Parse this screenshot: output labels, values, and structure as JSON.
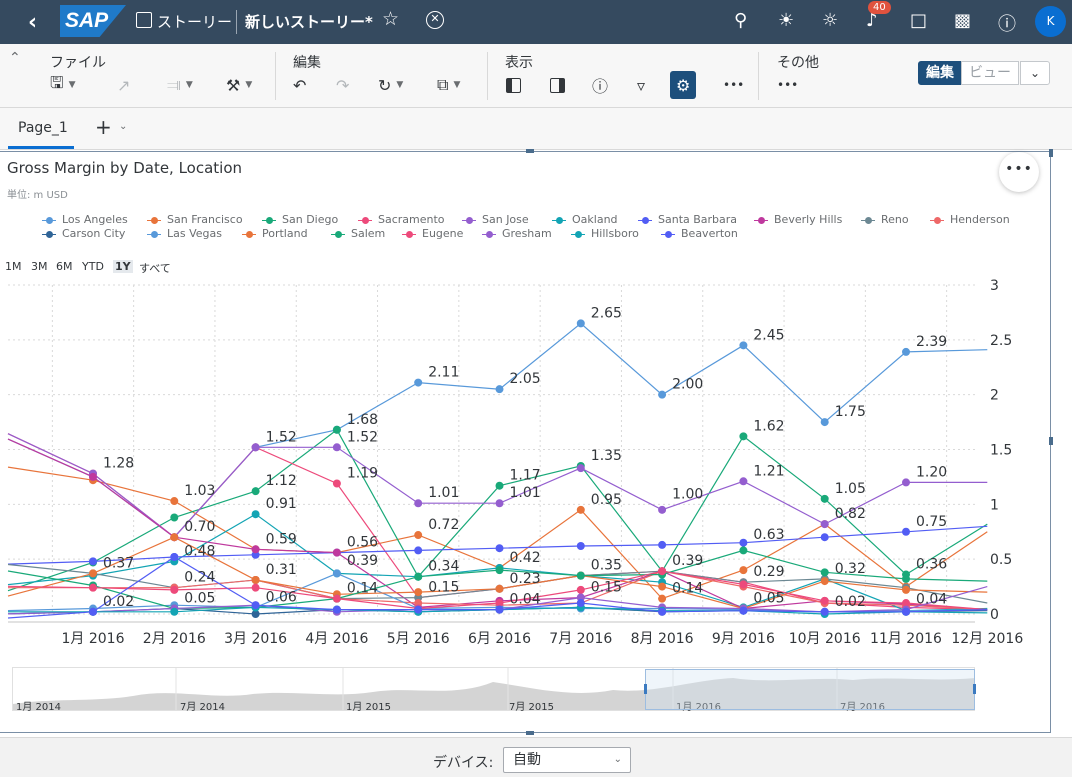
{
  "shell": {
    "logo_text": "SAP",
    "crumb": "ストーリー",
    "title": "新しいストーリー*",
    "notification_count": "40",
    "avatar_initial": "K"
  },
  "toolbar": {
    "file_label": "ファイル",
    "edit_label": "編集",
    "view_label": "表示",
    "other_label": "その他",
    "more_glyph": "•••",
    "mode_edit": "編集",
    "mode_view": "ビュー"
  },
  "tabs": {
    "page_label": "Page_1"
  },
  "chart": {
    "title": "Gross Margin by Date, Location",
    "unit": "単位: m USD",
    "more_glyph": "•••",
    "range_buttons": [
      "1M",
      "3M",
      "6M",
      "YTD",
      "1Y",
      "すべて"
    ],
    "range_selected": "1Y",
    "navigator_labels": [
      "1月 2014",
      "7月 2014",
      "1月 2015",
      "7月 2015",
      "1月 2016",
      "7月 2016"
    ],
    "highlight_color": "#5899da"
  },
  "footer": {
    "device_label": "デバイス:",
    "device_value": "自動"
  },
  "chart_data": {
    "type": "line",
    "title": "Gross Margin by Date, Location",
    "subtitle": "単位: m USD",
    "x": [
      "1月 2016",
      "2月 2016",
      "3月 2016",
      "4月 2016",
      "5月 2016",
      "6月 2016",
      "7月 2016",
      "8月 2016",
      "9月 2016",
      "10月 2016",
      "11月 2016",
      "12月 2016"
    ],
    "ylim": [
      0,
      3
    ],
    "yticks": [
      "0",
      "0.5",
      "1",
      "1.5",
      "2",
      "2.5",
      "3"
    ],
    "y_axis_side": "right",
    "grid": true,
    "legend_position": "top",
    "series": [
      {
        "name": "Los Angeles",
        "color": "#5899da",
        "values": [
          1.25,
          0.7,
          1.52,
          1.68,
          2.11,
          2.05,
          2.65,
          2.0,
          2.45,
          1.75,
          2.39,
          2.41
        ]
      },
      {
        "name": "San Francisco",
        "color": "#e8743b",
        "values": [
          1.22,
          1.03,
          0.59,
          0.56,
          0.72,
          0.42,
          0.95,
          0.14,
          0.4,
          0.82,
          0.25,
          0.75
        ]
      },
      {
        "name": "San Diego",
        "color": "#19a979",
        "values": [
          0.47,
          0.88,
          1.12,
          1.68,
          0.34,
          1.17,
          1.35,
          0.39,
          1.62,
          1.05,
          0.36,
          0.82
        ]
      },
      {
        "name": "Sacramento",
        "color": "#ed4a7b",
        "values": [
          1.28,
          0.7,
          1.52,
          1.19,
          0.15,
          0.23,
          0.35,
          0.39,
          0.29,
          0.1,
          0.06,
          0.04
        ]
      },
      {
        "name": "San Jose",
        "color": "#945ecf",
        "values": [
          1.28,
          0.7,
          1.52,
          1.52,
          1.01,
          1.01,
          1.33,
          0.95,
          1.21,
          0.82,
          1.2,
          1.2
        ]
      },
      {
        "name": "Oakland",
        "color": "#13a4b4",
        "values": [
          0.35,
          0.48,
          0.91,
          0.37,
          0.34,
          0.42,
          0.35,
          0.29,
          0.06,
          0.32,
          0.03,
          0.05
        ]
      },
      {
        "name": "Santa Barbara",
        "color": "#525df4",
        "values": [
          0.48,
          0.52,
          0.54,
          0.56,
          0.58,
          0.6,
          0.62,
          0.63,
          0.65,
          0.7,
          0.75,
          0.8
        ]
      },
      {
        "name": "Beverly Hills",
        "color": "#bf399e",
        "values": [
          1.25,
          0.7,
          0.59,
          0.56,
          0.06,
          0.12,
          0.15,
          0.39,
          0.05,
          0.12,
          0.09,
          0.04
        ]
      },
      {
        "name": "Reno",
        "color": "#6c8893",
        "values": [
          0.37,
          0.24,
          0.31,
          0.14,
          0.15,
          0.23,
          0.35,
          0.39,
          0.29,
          0.32,
          0.24,
          0.1
        ]
      },
      {
        "name": "Henderson",
        "color": "#ee6868",
        "values": [
          0.24,
          0.24,
          0.31,
          0.14,
          0.1,
          0.08,
          0.1,
          0.39,
          0.25,
          0.1,
          0.08,
          0.04
        ]
      },
      {
        "name": "Carson City",
        "color": "#2f6497",
        "values": [
          0.02,
          0.05,
          0.0,
          0.04,
          0.02,
          0.04,
          0.06,
          0.02,
          0.03,
          0.02,
          0.02,
          0.03
        ]
      },
      {
        "name": "Las Vegas",
        "color": "#5899da",
        "values": [
          0.05,
          0.08,
          0.06,
          0.37,
          0.05,
          0.06,
          0.05,
          0.05,
          0.04,
          0.02,
          0.03,
          0.04
        ]
      },
      {
        "name": "Portland",
        "color": "#e8743b",
        "values": [
          0.37,
          0.7,
          0.31,
          0.18,
          0.2,
          0.23,
          0.35,
          0.25,
          0.05,
          0.3,
          0.22,
          0.2
        ]
      },
      {
        "name": "Salem",
        "color": "#19a979",
        "values": [
          0.26,
          0.05,
          0.06,
          0.14,
          0.34,
          0.4,
          0.35,
          0.36,
          0.58,
          0.38,
          0.32,
          0.3
        ]
      },
      {
        "name": "Eugene",
        "color": "#ed4a7b",
        "values": [
          0.24,
          0.22,
          0.24,
          0.14,
          0.05,
          0.1,
          0.22,
          0.39,
          0.27,
          0.12,
          0.1,
          0.04
        ]
      },
      {
        "name": "Gresham",
        "color": "#945ecf",
        "values": [
          0.02,
          0.05,
          0.08,
          0.02,
          0.04,
          0.04,
          0.15,
          0.06,
          0.05,
          0.02,
          0.04,
          0.25
        ]
      },
      {
        "name": "Hillsboro",
        "color": "#13a4b4",
        "values": [
          0.02,
          0.02,
          0.06,
          0.04,
          0.02,
          0.04,
          0.06,
          0.03,
          0.03,
          0.0,
          0.02,
          0.01
        ]
      },
      {
        "name": "Beaverton",
        "color": "#525df4",
        "values": [
          0.02,
          0.52,
          0.08,
          0.04,
          0.04,
          0.04,
          0.1,
          0.02,
          0.03,
          0.02,
          0.02,
          0.04
        ]
      }
    ],
    "data_labels": [
      {
        "x": "1月 2016",
        "value": 1.28,
        "text": "1.28"
      },
      {
        "x": "1月 2016",
        "value": 0.37,
        "text": "0.37"
      },
      {
        "x": "1月 2016",
        "value": 0.02,
        "text": "0.02"
      },
      {
        "x": "2月 2016",
        "value": 1.03,
        "text": "1.03"
      },
      {
        "x": "2月 2016",
        "value": 0.7,
        "text": "0.70"
      },
      {
        "x": "2月 2016",
        "value": 0.48,
        "text": "0.48"
      },
      {
        "x": "2月 2016",
        "value": 0.24,
        "text": "0.24"
      },
      {
        "x": "2月 2016",
        "value": 0.05,
        "text": "0.05"
      },
      {
        "x": "3月 2016",
        "value": 1.52,
        "text": "1.52"
      },
      {
        "x": "3月 2016",
        "value": 1.12,
        "text": "1.12"
      },
      {
        "x": "3月 2016",
        "value": 0.91,
        "text": "0.91"
      },
      {
        "x": "3月 2016",
        "value": 0.59,
        "text": "0.59"
      },
      {
        "x": "3月 2016",
        "value": 0.31,
        "text": "0.31"
      },
      {
        "x": "3月 2016",
        "value": 0.06,
        "text": "0.06"
      },
      {
        "x": "4月 2016",
        "value": 1.68,
        "text": "1.68"
      },
      {
        "x": "4月 2016",
        "value": 1.52,
        "text": "1.52"
      },
      {
        "x": "4月 2016",
        "value": 1.19,
        "text": "1.19"
      },
      {
        "x": "4月 2016",
        "value": 0.56,
        "text": "0.56"
      },
      {
        "x": "4月 2016",
        "value": 0.39,
        "text": "0.39"
      },
      {
        "x": "4月 2016",
        "value": 0.14,
        "text": "0.14"
      },
      {
        "x": "5月 2016",
        "value": 2.11,
        "text": "2.11"
      },
      {
        "x": "5月 2016",
        "value": 1.01,
        "text": "1.01"
      },
      {
        "x": "5月 2016",
        "value": 0.72,
        "text": "0.72"
      },
      {
        "x": "5月 2016",
        "value": 0.34,
        "text": "0.34"
      },
      {
        "x": "5月 2016",
        "value": 0.15,
        "text": "0.15"
      },
      {
        "x": "6月 2016",
        "value": 2.05,
        "text": "2.05"
      },
      {
        "x": "6月 2016",
        "value": 1.17,
        "text": "1.17"
      },
      {
        "x": "6月 2016",
        "value": 1.01,
        "text": "1.01"
      },
      {
        "x": "6月 2016",
        "value": 0.42,
        "text": "0.42"
      },
      {
        "x": "6月 2016",
        "value": 0.23,
        "text": "0.23"
      },
      {
        "x": "6月 2016",
        "value": 0.04,
        "text": "0.04"
      },
      {
        "x": "7月 2016",
        "value": 2.65,
        "text": "2.65"
      },
      {
        "x": "7月 2016",
        "value": 1.35,
        "text": "1.35"
      },
      {
        "x": "7月 2016",
        "value": 0.95,
        "text": "0.95"
      },
      {
        "x": "7月 2016",
        "value": 0.35,
        "text": "0.35"
      },
      {
        "x": "7月 2016",
        "value": 0.15,
        "text": "0.15"
      },
      {
        "x": "8月 2016",
        "value": 2.0,
        "text": "2.00"
      },
      {
        "x": "8月 2016",
        "value": 1.0,
        "text": "1.00"
      },
      {
        "x": "8月 2016",
        "value": 0.39,
        "text": "0.39"
      },
      {
        "x": "8月 2016",
        "value": 0.14,
        "text": "0.14"
      },
      {
        "x": "9月 2016",
        "value": 2.45,
        "text": "2.45"
      },
      {
        "x": "9月 2016",
        "value": 1.62,
        "text": "1.62"
      },
      {
        "x": "9月 2016",
        "value": 1.21,
        "text": "1.21"
      },
      {
        "x": "9月 2016",
        "value": 0.63,
        "text": "0.63"
      },
      {
        "x": "9月 2016",
        "value": 0.29,
        "text": "0.29"
      },
      {
        "x": "9月 2016",
        "value": 0.05,
        "text": "0.05"
      },
      {
        "x": "10月 2016",
        "value": 1.75,
        "text": "1.75"
      },
      {
        "x": "10月 2016",
        "value": 1.05,
        "text": "1.05"
      },
      {
        "x": "10月 2016",
        "value": 0.82,
        "text": "0.82"
      },
      {
        "x": "10月 2016",
        "value": 0.32,
        "text": "0.32"
      },
      {
        "x": "10月 2016",
        "value": 0.02,
        "text": "0.02"
      },
      {
        "x": "11月 2016",
        "value": 2.39,
        "text": "2.39"
      },
      {
        "x": "11月 2016",
        "value": 1.2,
        "text": "1.20"
      },
      {
        "x": "11月 2016",
        "value": 0.75,
        "text": "0.75"
      },
      {
        "x": "11月 2016",
        "value": 0.36,
        "text": "0.36"
      },
      {
        "x": "11月 2016",
        "value": 0.04,
        "text": "0.04"
      }
    ]
  }
}
